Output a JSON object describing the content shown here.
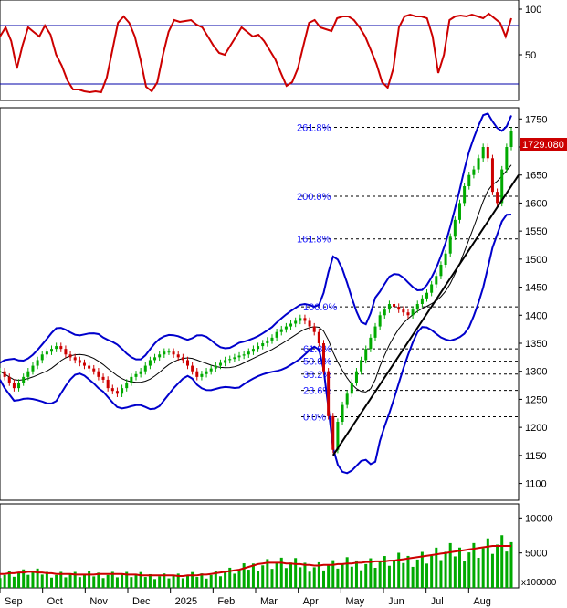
{
  "colors": {
    "rsi_line": "#cc0000",
    "ref_line": "#0000aa",
    "band": "#0000cc",
    "ma": "#000000",
    "up": "#00aa00",
    "down": "#cc0000",
    "fib": "#000000",
    "fib_text": "#1a1aff",
    "trend": "#000000",
    "volume": "#00aa00",
    "volume_ma": "#cc0000",
    "price_box": "#cc0000"
  },
  "chart_data": [
    {
      "type": "line",
      "panel": "oscillator",
      "y_ticks": [
        100,
        50
      ],
      "ylim": [
        0,
        110
      ],
      "reference_lines": [
        80,
        20
      ],
      "values": [
        70,
        80,
        65,
        35,
        60,
        80,
        75,
        70,
        82,
        72,
        50,
        38,
        22,
        12,
        12,
        10,
        9,
        10,
        9,
        25,
        55,
        85,
        92,
        85,
        70,
        45,
        15,
        10,
        20,
        50,
        75,
        88,
        86,
        87,
        88,
        83,
        80,
        70,
        60,
        52,
        50,
        60,
        70,
        80,
        75,
        70,
        72,
        65,
        55,
        45,
        30,
        16,
        20,
        35,
        60,
        85,
        88,
        80,
        78,
        76,
        90,
        92,
        92,
        88,
        80,
        70,
        55,
        40,
        20,
        14,
        35,
        80,
        92,
        94,
        92,
        92,
        90,
        70,
        30,
        50,
        88,
        92,
        93,
        92,
        94,
        92,
        90,
        95,
        90,
        85,
        70,
        90
      ]
    },
    {
      "type": "line",
      "panel": "price",
      "x_ticks": [
        "Sep",
        "Oct",
        "Nov",
        "Dec",
        "2025",
        "Feb",
        "Mar",
        "Apr",
        "May",
        "Jun",
        "Jul",
        "Aug"
      ],
      "y_ticks": [
        1750,
        1700,
        1650,
        1600,
        1550,
        1500,
        1450,
        1400,
        1350,
        1300,
        1250,
        1200,
        1150,
        1100
      ],
      "ylim": [
        1070,
        1770
      ],
      "last_price": "1729.080",
      "fibonacci": [
        {
          "label": "261.8%",
          "value": 1735
        },
        {
          "label": "200.0%",
          "value": 1612
        },
        {
          "label": "161.8%",
          "value": 1536
        },
        {
          "label": "100.0%",
          "value": 1415
        },
        {
          "label": "61.8%",
          "value": 1340
        },
        {
          "label": "50.0%",
          "value": 1318
        },
        {
          "label": "38.2%",
          "value": 1295
        },
        {
          "label": "23.6%",
          "value": 1266
        },
        {
          "label": "0.0%",
          "value": 1219
        }
      ],
      "close": [
        1300,
        1290,
        1280,
        1270,
        1280,
        1290,
        1300,
        1310,
        1320,
        1330,
        1335,
        1340,
        1345,
        1340,
        1330,
        1325,
        1320,
        1315,
        1310,
        1305,
        1300,
        1290,
        1285,
        1270,
        1265,
        1260,
        1270,
        1280,
        1290,
        1295,
        1300,
        1310,
        1320,
        1325,
        1330,
        1335,
        1335,
        1330,
        1325,
        1320,
        1310,
        1300,
        1290,
        1295,
        1300,
        1305,
        1310,
        1315,
        1320,
        1322,
        1325,
        1328,
        1330,
        1335,
        1340,
        1345,
        1350,
        1355,
        1360,
        1370,
        1375,
        1380,
        1385,
        1390,
        1395,
        1390,
        1380,
        1370,
        1350,
        1300,
        1220,
        1160,
        1210,
        1240,
        1260,
        1280,
        1300,
        1320,
        1340,
        1360,
        1380,
        1400,
        1410,
        1420,
        1415,
        1410,
        1405,
        1400,
        1410,
        1420,
        1430,
        1440,
        1455,
        1470,
        1490,
        1510,
        1540,
        1570,
        1600,
        1630,
        1650,
        1660,
        1680,
        1700,
        1680,
        1620,
        1600,
        1660,
        1700,
        1729
      ]
    },
    {
      "type": "bar",
      "panel": "volume",
      "y_ticks": [
        10000,
        5000
      ],
      "ylim": [
        0,
        12000
      ],
      "unit_label": "x100000",
      "ma_values": [
        2000,
        2000,
        2100,
        2100,
        2200,
        2200,
        2300,
        2300,
        2200,
        2200,
        2100,
        2100,
        2000,
        2000,
        2000,
        2000,
        1900,
        1900,
        1900,
        1900,
        1900,
        2000,
        2000,
        2000,
        2000,
        2000,
        2000,
        1900,
        1900,
        1900,
        1800,
        1800,
        1800,
        1800,
        1800,
        1800,
        1800,
        1800,
        1700,
        1700,
        1800,
        1800,
        1800,
        1900,
        1900,
        2000,
        2100,
        2200,
        2300,
        2400,
        2500,
        2600,
        2800,
        3000,
        3200,
        3400,
        3500,
        3600,
        3600,
        3600,
        3600,
        3500,
        3500,
        3400,
        3400,
        3300,
        3300,
        3200,
        3200,
        3300,
        3300,
        3300,
        3400,
        3400,
        3500,
        3500,
        3600,
        3600,
        3700,
        3700,
        3800,
        3800,
        3800,
        3900,
        3900,
        4000,
        4100,
        4200,
        4300,
        4400,
        4500,
        4600,
        4700,
        4800,
        4900,
        5000,
        5100,
        5200,
        5300,
        5400,
        5500,
        5600,
        5700,
        5800,
        5900,
        6000,
        6000,
        6000,
        6000,
        6000
      ]
    }
  ]
}
